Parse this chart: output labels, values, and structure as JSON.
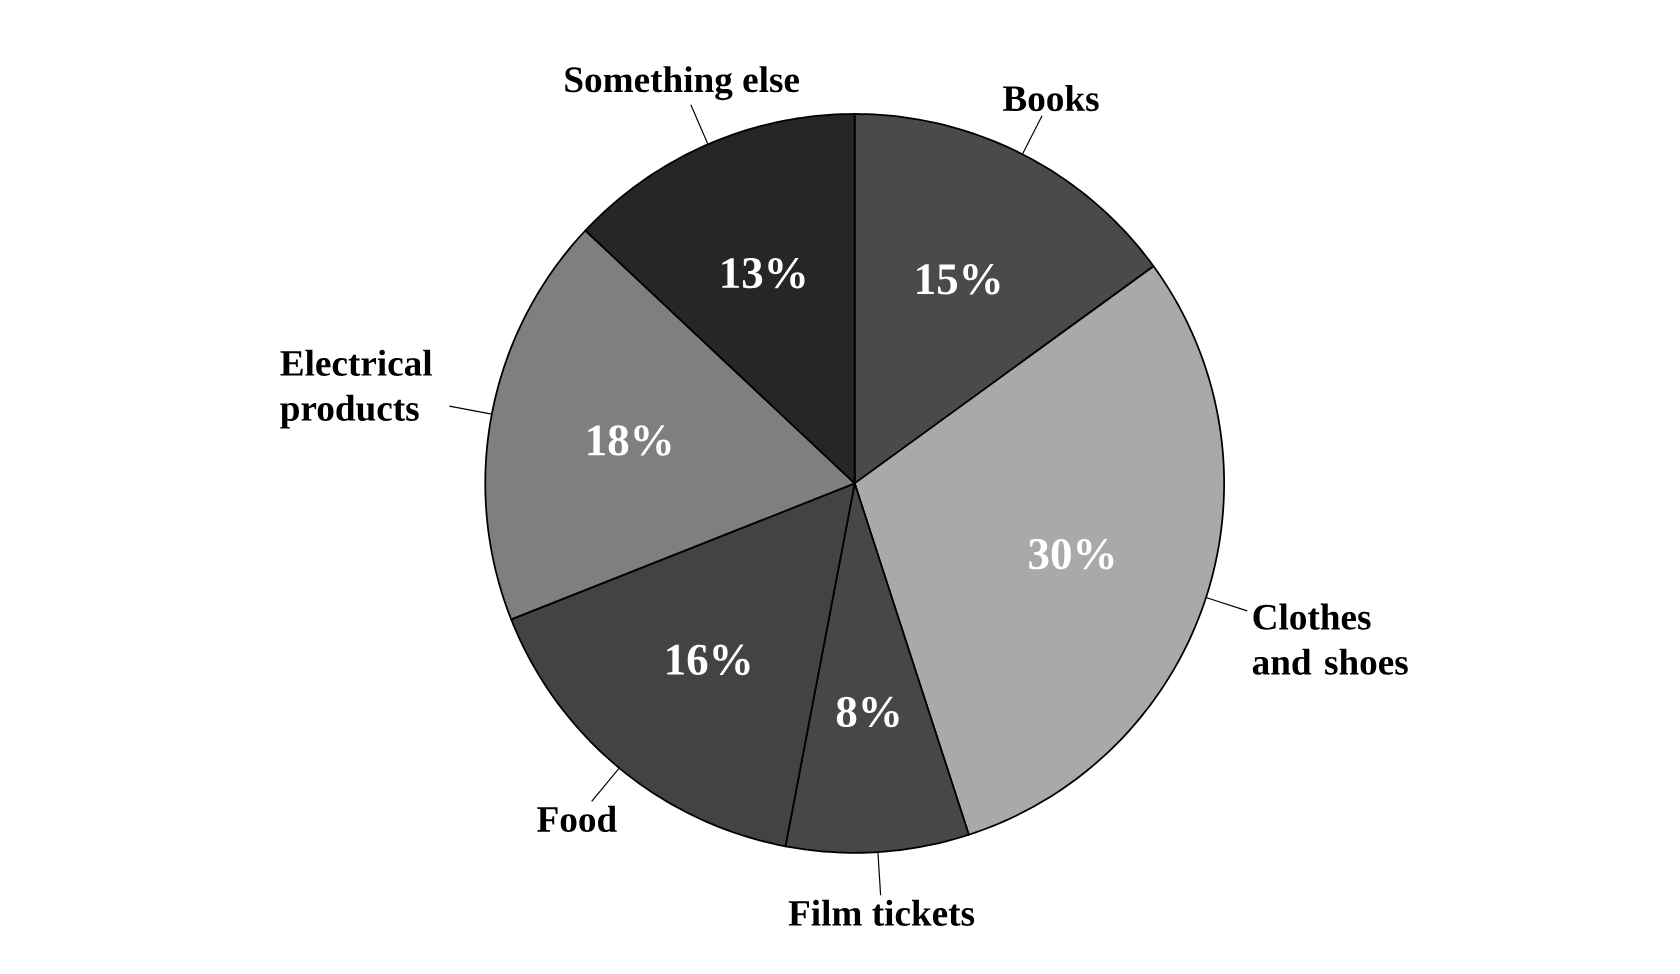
{
  "chart_data": {
    "type": "pie",
    "categories": [
      "Books",
      "Clothes and shoes",
      "Film tickets",
      "Food",
      "Electrical products",
      "Something else"
    ],
    "values": [
      15,
      30,
      8,
      16,
      18,
      13
    ],
    "value_labels": [
      "15%",
      "30%",
      "8%",
      "16%",
      "18%",
      "13%"
    ],
    "colors": [
      "#4a4a4a",
      "#a9a9a9",
      "#474747",
      "#434343",
      "#7f7f7f",
      "#262626"
    ]
  }
}
